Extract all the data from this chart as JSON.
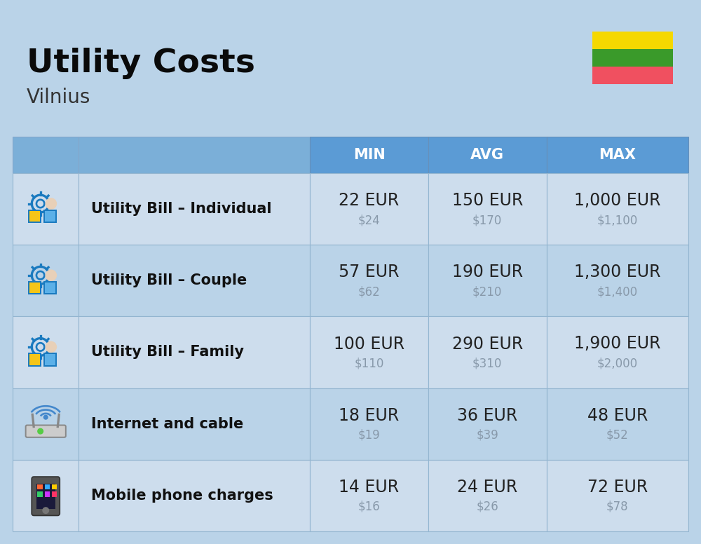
{
  "title": "Utility Costs",
  "subtitle": "Vilnius",
  "bg_color": "#bad3e8",
  "header_color_dark": "#5b9bd5",
  "header_color_light": "#7bafd8",
  "header_text_color": "#ffffff",
  "row_color_odd": "#cddded",
  "row_color_even": "#bad3e8",
  "col_label_color": "#111111",
  "value_color": "#222222",
  "usd_color": "#8899aa",
  "columns": [
    "MIN",
    "AVG",
    "MAX"
  ],
  "rows": [
    {
      "label": "Utility Bill – Individual",
      "min_eur": "22 EUR",
      "min_usd": "$24",
      "avg_eur": "150 EUR",
      "avg_usd": "$170",
      "max_eur": "1,000 EUR",
      "max_usd": "$1,100"
    },
    {
      "label": "Utility Bill – Couple",
      "min_eur": "57 EUR",
      "min_usd": "$62",
      "avg_eur": "190 EUR",
      "avg_usd": "$210",
      "max_eur": "1,300 EUR",
      "max_usd": "$1,400"
    },
    {
      "label": "Utility Bill – Family",
      "min_eur": "100 EUR",
      "min_usd": "$110",
      "avg_eur": "290 EUR",
      "avg_usd": "$310",
      "max_eur": "1,900 EUR",
      "max_usd": "$2,000"
    },
    {
      "label": "Internet and cable",
      "min_eur": "18 EUR",
      "min_usd": "$19",
      "avg_eur": "36 EUR",
      "avg_usd": "$39",
      "max_eur": "48 EUR",
      "max_usd": "$52"
    },
    {
      "label": "Mobile phone charges",
      "min_eur": "14 EUR",
      "min_usd": "$16",
      "avg_eur": "24 EUR",
      "avg_usd": "$26",
      "max_eur": "72 EUR",
      "max_usd": "$78"
    }
  ],
  "flag_colors": [
    "#f5d800",
    "#3a9a2a",
    "#f05060"
  ],
  "title_fontsize": 34,
  "subtitle_fontsize": 20,
  "header_fontsize": 15,
  "label_fontsize": 15,
  "value_fontsize": 17,
  "usd_fontsize": 12,
  "fig_width": 10.0,
  "fig_height": 7.76
}
